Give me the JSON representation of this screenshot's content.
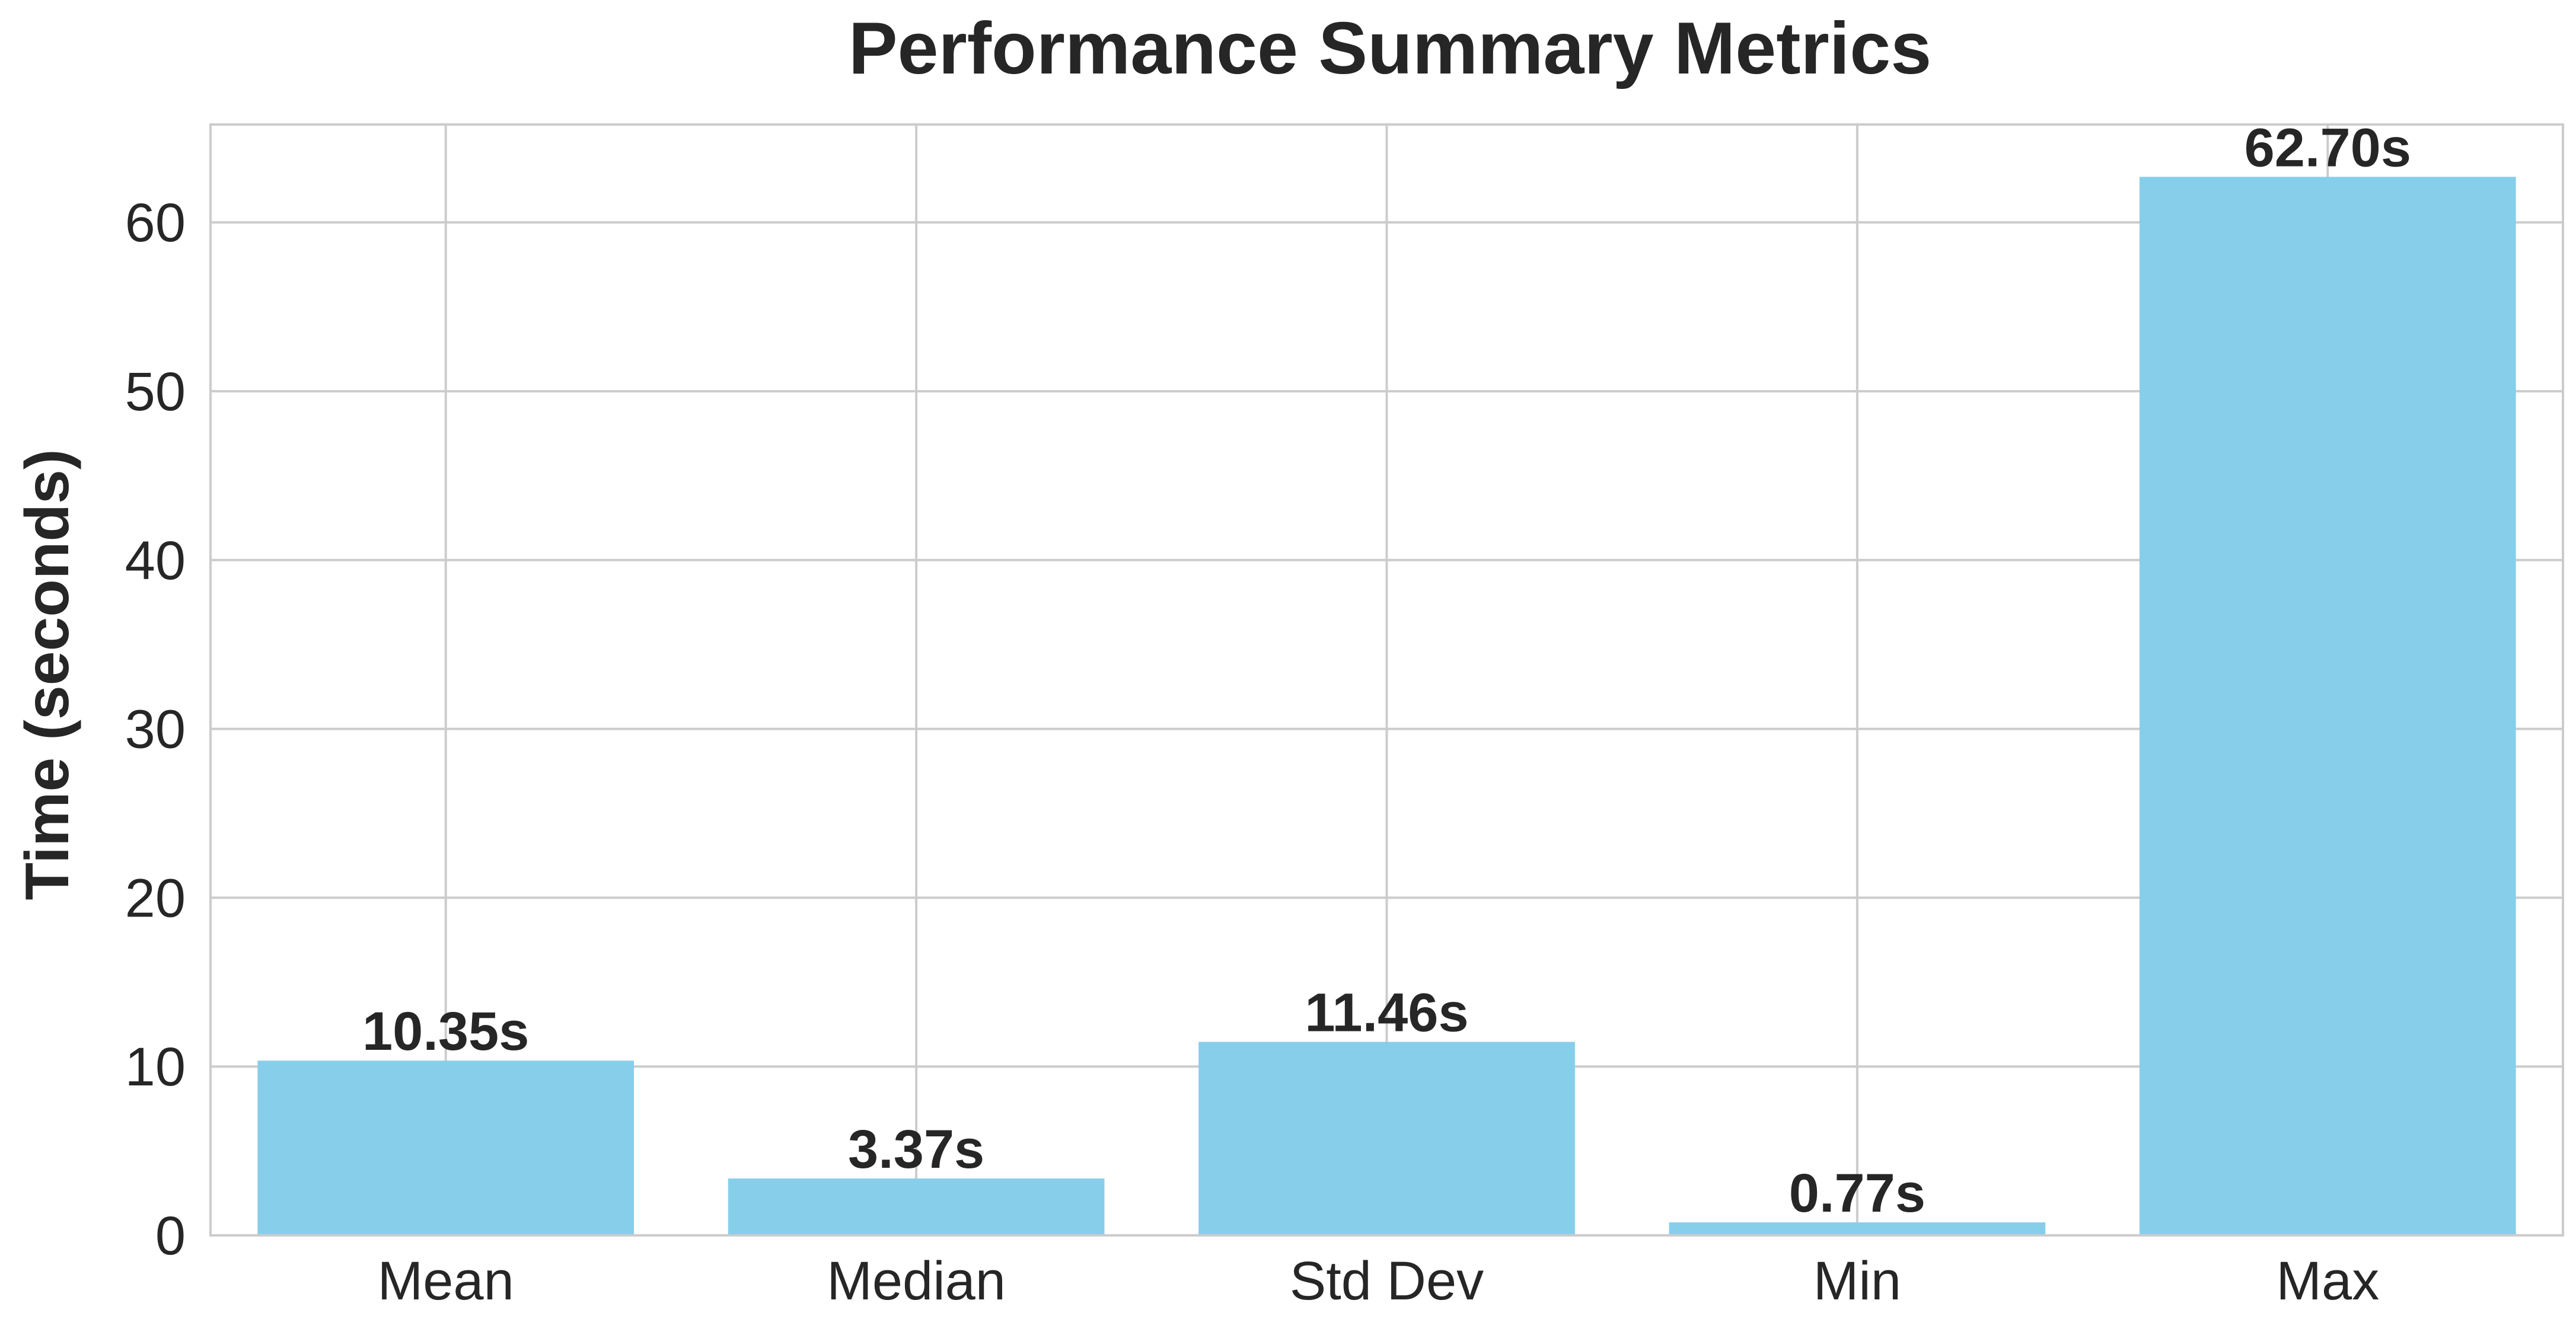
{
  "chart_data": {
    "type": "bar",
    "title": "Performance Summary Metrics",
    "xlabel": "",
    "ylabel": "Time (seconds)",
    "categories": [
      "Mean",
      "Median",
      "Std Dev",
      "Min",
      "Max"
    ],
    "values": [
      10.35,
      3.37,
      11.46,
      0.77,
      62.7
    ],
    "data_labels": [
      "10.35s",
      "3.37s",
      "11.46s",
      "0.77s",
      "62.70s"
    ],
    "ylim": [
      0,
      65.8
    ],
    "yticks": [
      0,
      10,
      20,
      30,
      40,
      50,
      60
    ],
    "grid": true,
    "bar_color": "#87ceeb",
    "grid_color": "#cccccc",
    "text_color": "#262626"
  }
}
